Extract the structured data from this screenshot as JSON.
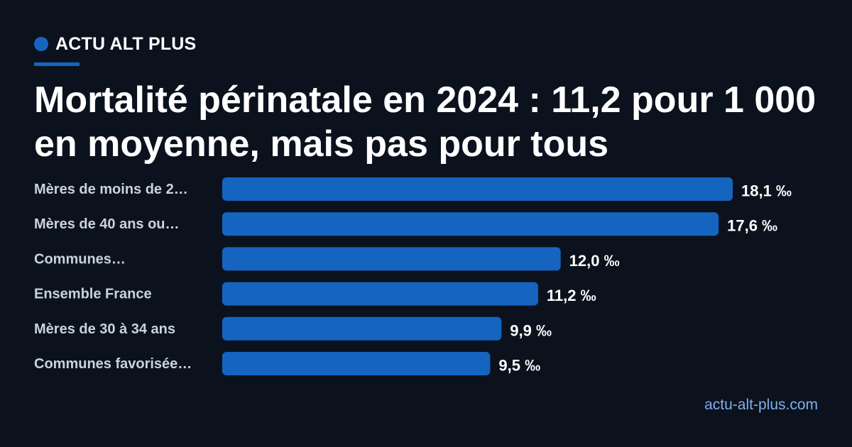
{
  "brand": {
    "name": "ACTU ALT PLUS",
    "accent": "#1565c0"
  },
  "title": "Mortalité périnatale en 2024 : 11,2 pour 1 000 en moyenne, mais pas pour tous",
  "footer": {
    "url": "actu-alt-plus.com"
  },
  "chart_data": {
    "type": "bar",
    "orientation": "horizontal",
    "categories": [
      "Mères de moins de 2…",
      "Mères de 40 ans ou…",
      "Communes…",
      "Ensemble France",
      "Mères de 30 à 34 ans",
      "Communes favorisée…"
    ],
    "values": [
      18.1,
      17.6,
      12.0,
      11.2,
      9.9,
      9.5
    ],
    "value_labels": [
      "18,1 ‰",
      "17,6 ‰",
      "12,0 ‰",
      "11,2 ‰",
      "9,9 ‰",
      "9,5 ‰"
    ],
    "xlim": [
      0,
      18.1
    ],
    "grid": false,
    "bar_color": "#1565c0",
    "title": "",
    "xlabel": "",
    "ylabel": ""
  }
}
